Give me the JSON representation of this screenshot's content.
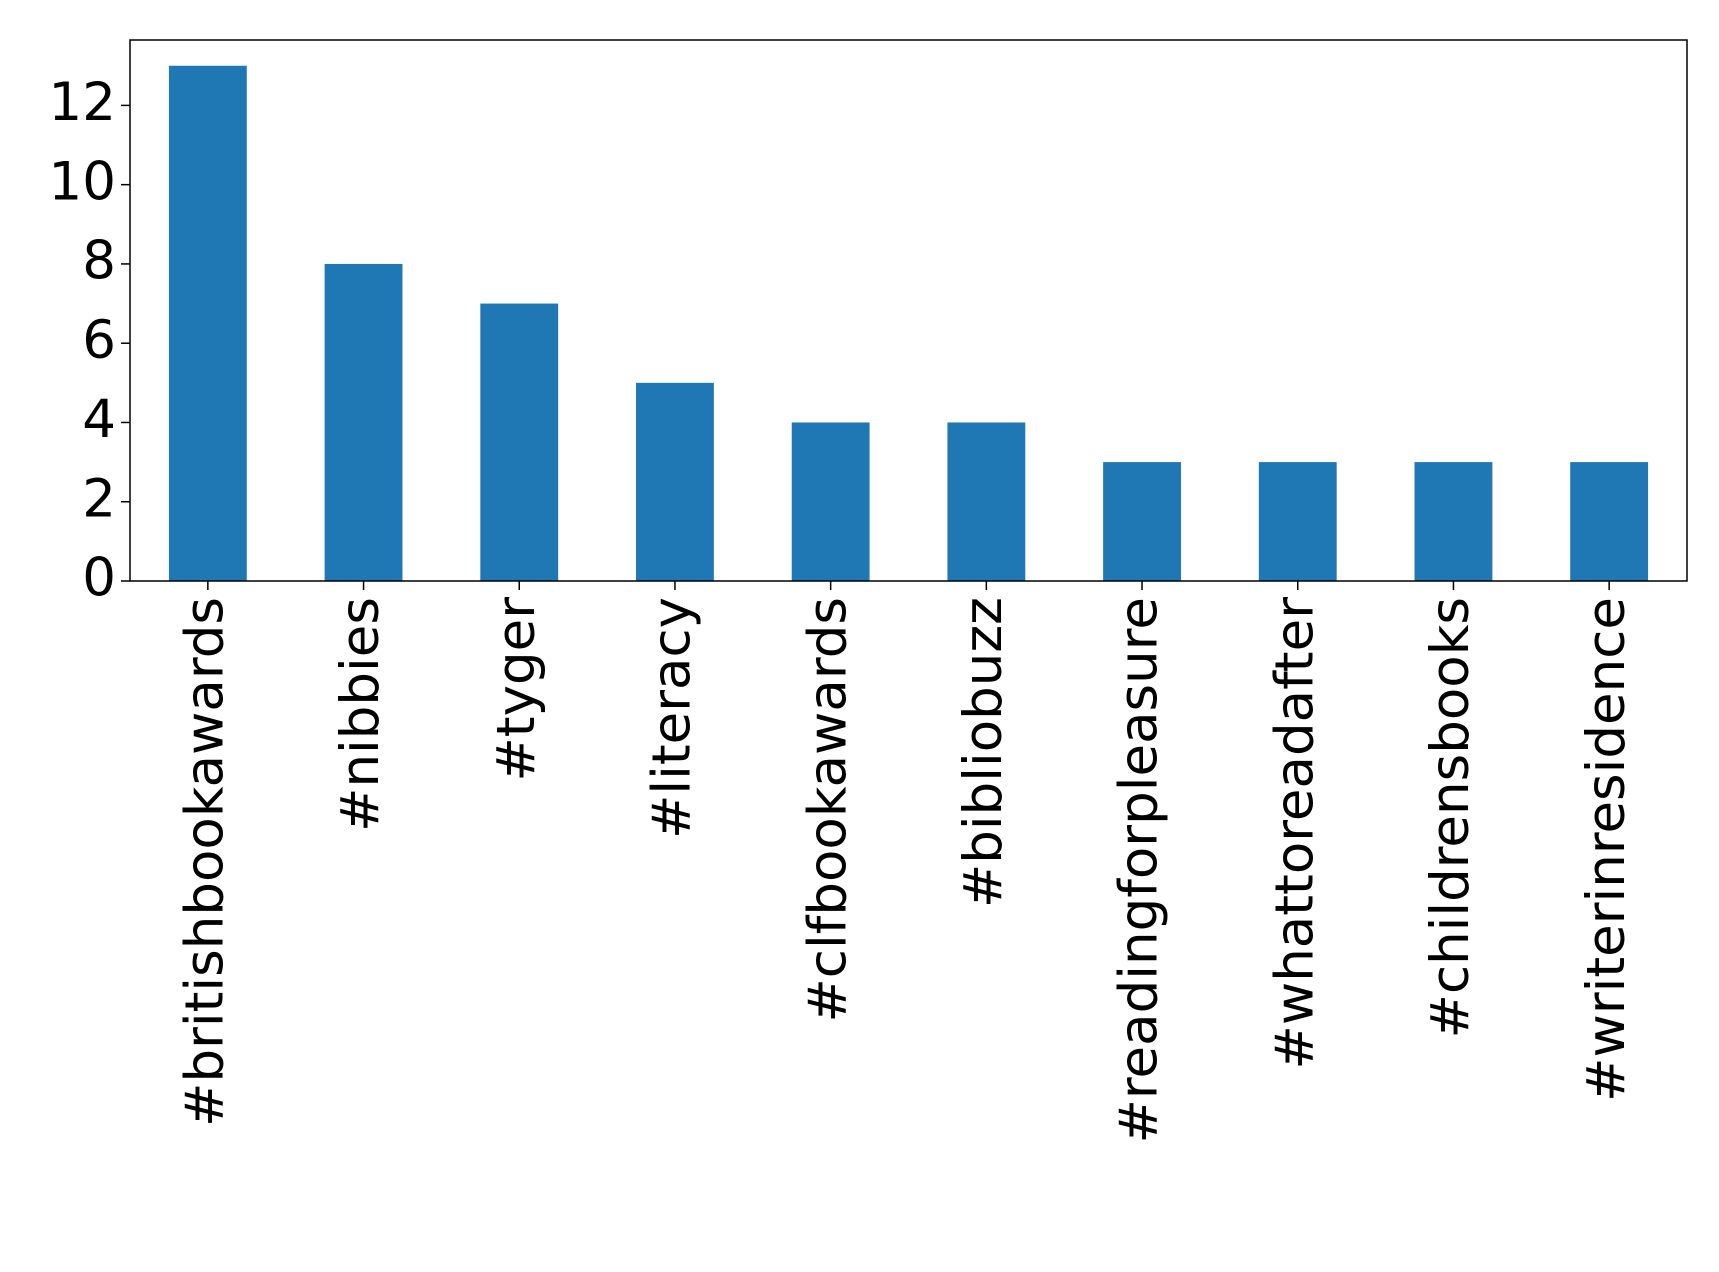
{
  "chart_data": {
    "type": "bar",
    "categories": [
      "#britishbookawards",
      "#nibbies",
      "#tyger",
      "#literacy",
      "#clfbookawards",
      "#bibliobuzz",
      "#readingforpleasure",
      "#whattoreadafter",
      "#childrensbooks",
      "#writerinresidence"
    ],
    "values": [
      13,
      8,
      7,
      5,
      4,
      4,
      3,
      3,
      3,
      3
    ],
    "color": "#1f77b4",
    "ylim": [
      0,
      13.65
    ],
    "yticks": [
      0,
      2,
      4,
      6,
      8,
      10,
      12
    ],
    "grid": false
  }
}
